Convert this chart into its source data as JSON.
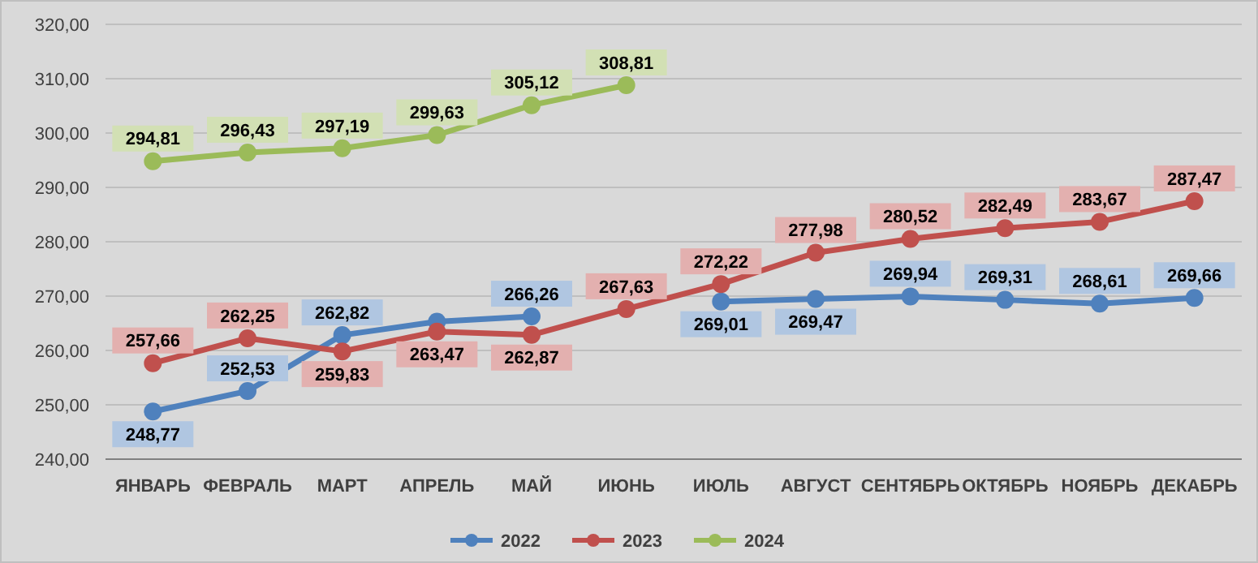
{
  "chart_data": {
    "type": "line",
    "categories": [
      "ЯНВАРЬ",
      "ФЕВРАЛЬ",
      "МАРТ",
      "АПРЕЛЬ",
      "МАЙ",
      "ИЮНЬ",
      "ИЮЛЬ",
      "АВГУСТ",
      "СЕНТЯБРЬ",
      "ОКТЯБРЬ",
      "НОЯБРЬ",
      "ДЕКАБРЬ"
    ],
    "series": [
      {
        "name": "2022",
        "color": "#4f81bd",
        "values": [
          248.77,
          252.53,
          262.82,
          265.3,
          266.26,
          null,
          269.01,
          269.47,
          269.94,
          269.31,
          268.61,
          269.66
        ],
        "value_labels": [
          "248,77",
          "252,53",
          "262,82",
          null,
          "266,26",
          null,
          "269,01",
          "269,47",
          "269,94",
          "269,31",
          "268,61",
          "269,66"
        ]
      },
      {
        "name": "2023",
        "color": "#c0504d",
        "values": [
          257.66,
          262.25,
          259.83,
          263.47,
          262.87,
          267.63,
          272.22,
          277.98,
          280.52,
          282.49,
          283.67,
          287.47
        ],
        "value_labels": [
          "257,66",
          "262,25",
          "259,83",
          "263,47",
          "262,87",
          "267,63",
          "272,22",
          "277,98",
          "280,52",
          "282,49",
          "283,67",
          "287,47"
        ]
      },
      {
        "name": "2024",
        "color": "#9bbb59",
        "values": [
          294.81,
          296.43,
          297.19,
          299.63,
          305.12,
          308.81,
          null,
          null,
          null,
          null,
          null,
          null
        ],
        "value_labels": [
          "294,81",
          "296,43",
          "297,19",
          "299,63",
          "305,12",
          "308,81",
          null,
          null,
          null,
          null,
          null,
          null
        ]
      }
    ],
    "ylim": [
      240,
      320
    ],
    "yticks": [
      {
        "value": 240,
        "label": "240,00"
      },
      {
        "value": 250,
        "label": "250,00"
      },
      {
        "value": 260,
        "label": "260,00"
      },
      {
        "value": 270,
        "label": "270,00"
      },
      {
        "value": 280,
        "label": "280,00"
      },
      {
        "value": 290,
        "label": "290,00"
      },
      {
        "value": 300,
        "label": "300,00"
      },
      {
        "value": 310,
        "label": "310,00"
      },
      {
        "value": 320,
        "label": "320,00"
      }
    ],
    "grid": "y",
    "legend": "bottom",
    "marker": "circle",
    "line_style": "solid"
  }
}
